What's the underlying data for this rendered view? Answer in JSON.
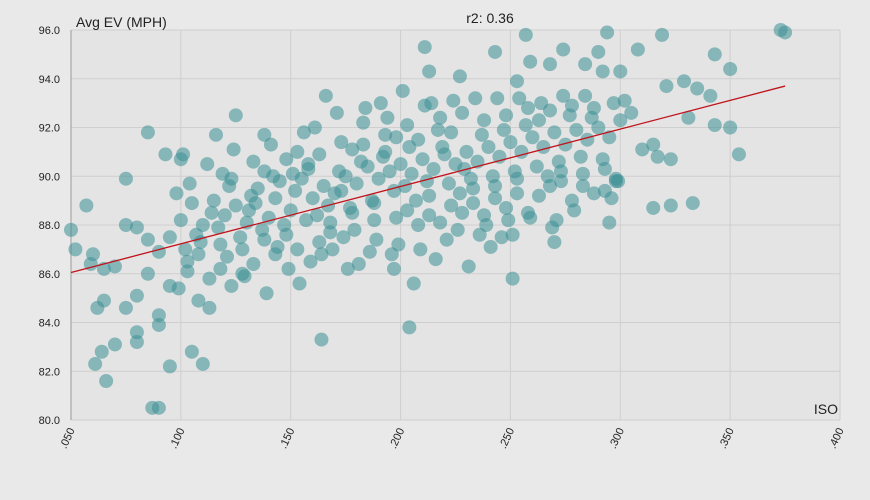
{
  "chart_data": {
    "type": "scatter",
    "title": "r2: 0.36",
    "y_label": "Avg EV (MPH)",
    "x_label": "ISO",
    "color": "#3a8f96",
    "grid": true,
    "xlim": [
      0.05,
      0.4
    ],
    "ylim": [
      80,
      96
    ],
    "xticks": [
      {
        "value": 0.05,
        "label": ".050"
      },
      {
        "value": 0.1,
        "label": ".100"
      },
      {
        "value": 0.15,
        "label": ".150"
      },
      {
        "value": 0.2,
        "label": ".200"
      },
      {
        "value": 0.25,
        "label": ".250"
      },
      {
        "value": 0.3,
        "label": ".300"
      },
      {
        "value": 0.35,
        "label": ".350"
      },
      {
        "value": 0.4,
        "label": ".400"
      }
    ],
    "yticks": [
      {
        "value": 80,
        "label": "80.0"
      },
      {
        "value": 82,
        "label": "82.0"
      },
      {
        "value": 84,
        "label": "84.0"
      },
      {
        "value": 86,
        "label": "86.0"
      },
      {
        "value": 88,
        "label": "88.0"
      },
      {
        "value": 90,
        "label": "90.0"
      },
      {
        "value": 92,
        "label": "92.0"
      },
      {
        "value": 94,
        "label": "94.0"
      },
      {
        "value": 96,
        "label": "96.0"
      }
    ],
    "trendline": {
      "x": [
        0.05,
        0.375
      ],
      "values": [
        86.05,
        93.7
      ],
      "color": "#c0141c"
    },
    "x": [
      0.05,
      0.052,
      0.057,
      0.059,
      0.062,
      0.061,
      0.064,
      0.066,
      0.07,
      0.075,
      0.085,
      0.087,
      0.09,
      0.08,
      0.08,
      0.095,
      0.11,
      0.105,
      0.204,
      0.164,
      0.251,
      0.211,
      0.243,
      0.257,
      0.294,
      0.308,
      0.319,
      0.373,
      0.375,
      0.343,
      0.35,
      0.354,
      0.343,
      0.35,
      0.333,
      0.323,
      0.315,
      0.295,
      0.323,
      0.331,
      0.341,
      0.335,
      0.329,
      0.321,
      0.3,
      0.292,
      0.29,
      0.284,
      0.274,
      0.268,
      0.259,
      0.253,
      0.227,
      0.213,
      0.27,
      0.271,
      0.296,
      0.299,
      0.125,
      0.138,
      0.116,
      0.1,
      0.093,
      0.06,
      0.065,
      0.07,
      0.075,
      0.08,
      0.085,
      0.09,
      0.095,
      0.065,
      0.075,
      0.08,
      0.085,
      0.09,
      0.095,
      0.09,
      0.1,
      0.102,
      0.098,
      0.103,
      0.099,
      0.101,
      0.105,
      0.107,
      0.103,
      0.108,
      0.104,
      0.11,
      0.112,
      0.108,
      0.113,
      0.109,
      0.115,
      0.117,
      0.113,
      0.118,
      0.114,
      0.12,
      0.122,
      0.118,
      0.123,
      0.119,
      0.121,
      0.125,
      0.127,
      0.123,
      0.128,
      0.124,
      0.13,
      0.132,
      0.128,
      0.133,
      0.129,
      0.131,
      0.135,
      0.137,
      0.133,
      0.138,
      0.134,
      0.14,
      0.142,
      0.138,
      0.143,
      0.139,
      0.141,
      0.145,
      0.147,
      0.143,
      0.148,
      0.144,
      0.15,
      0.152,
      0.148,
      0.153,
      0.149,
      0.151,
      0.155,
      0.157,
      0.153,
      0.158,
      0.154,
      0.156,
      0.16,
      0.162,
      0.158,
      0.163,
      0.159,
      0.161,
      0.165,
      0.167,
      0.163,
      0.168,
      0.164,
      0.166,
      0.17,
      0.172,
      0.168,
      0.173,
      0.169,
      0.171,
      0.175,
      0.177,
      0.173,
      0.178,
      0.174,
      0.176,
      0.18,
      0.182,
      0.178,
      0.183,
      0.179,
      0.181,
      0.185,
      0.187,
      0.183,
      0.188,
      0.184,
      0.186,
      0.19,
      0.192,
      0.188,
      0.193,
      0.189,
      0.191,
      0.195,
      0.197,
      0.193,
      0.198,
      0.194,
      0.196,
      0.2,
      0.202,
      0.198,
      0.203,
      0.199,
      0.201,
      0.197,
      0.205,
      0.207,
      0.203,
      0.208,
      0.204,
      0.206,
      0.21,
      0.212,
      0.208,
      0.213,
      0.209,
      0.211,
      0.215,
      0.217,
      0.213,
      0.218,
      0.214,
      0.216,
      0.22,
      0.222,
      0.218,
      0.223,
      0.219,
      0.221,
      0.225,
      0.227,
      0.223,
      0.228,
      0.224,
      0.226,
      0.23,
      0.232,
      0.228,
      0.233,
      0.229,
      0.231,
      0.235,
      0.237,
      0.233,
      0.238,
      0.234,
      0.236,
      0.24,
      0.242,
      0.238,
      0.243,
      0.239,
      0.241,
      0.245,
      0.247,
      0.243,
      0.248,
      0.244,
      0.246,
      0.25,
      0.252,
      0.248,
      0.253,
      0.249,
      0.251,
      0.255,
      0.257,
      0.253,
      0.258,
      0.254,
      0.26,
      0.262,
      0.258,
      0.263,
      0.259,
      0.265,
      0.267,
      0.263,
      0.268,
      0.264,
      0.27,
      0.272,
      0.268,
      0.273,
      0.269,
      0.275,
      0.277,
      0.273,
      0.278,
      0.274,
      0.28,
      0.282,
      0.278,
      0.283,
      0.279,
      0.285,
      0.287,
      0.283,
      0.288,
      0.284,
      0.29,
      0.292,
      0.288,
      0.293,
      0.295,
      0.297,
      0.293,
      0.298,
      0.3,
      0.302,
      0.298,
      0.305,
      0.31,
      0.315,
      0.317
    ],
    "values": [
      87.8,
      87.0,
      88.8,
      86.4,
      84.6,
      82.3,
      82.8,
      81.6,
      83.1,
      89.9,
      91.8,
      80.5,
      80.5,
      83.6,
      83.2,
      82.2,
      82.3,
      82.8,
      83.8,
      83.3,
      85.8,
      95.3,
      95.1,
      95.8,
      95.9,
      95.2,
      95.8,
      96.0,
      95.9,
      95.0,
      94.4,
      90.9,
      92.1,
      92.0,
      88.9,
      88.8,
      88.7,
      88.1,
      90.7,
      92.4,
      93.3,
      93.6,
      93.9,
      93.7,
      94.3,
      94.3,
      95.1,
      94.6,
      95.2,
      94.6,
      94.7,
      93.9,
      94.1,
      94.3,
      87.3,
      88.2,
      89.1,
      89.8,
      92.5,
      91.7,
      91.7,
      90.7,
      90.9,
      86.8,
      84.9,
      86.3,
      84.6,
      87.9,
      86.0,
      84.3,
      85.5,
      86.2,
      88.0,
      85.1,
      87.4,
      86.9,
      87.5,
      83.9,
      88.2,
      87.0,
      89.3,
      86.1,
      85.4,
      90.9,
      88.9,
      87.6,
      86.5,
      84.9,
      89.7,
      88.0,
      90.5,
      86.8,
      85.8,
      87.3,
      89.0,
      87.9,
      84.6,
      86.2,
      88.5,
      88.4,
      89.6,
      87.2,
      85.5,
      90.1,
      86.7,
      88.8,
      87.5,
      89.9,
      86.0,
      91.1,
      88.1,
      89.2,
      87.0,
      90.6,
      85.9,
      88.6,
      89.5,
      87.8,
      86.4,
      90.2,
      88.9,
      88.3,
      90.0,
      87.4,
      89.1,
      85.2,
      91.3,
      89.8,
      88.0,
      86.8,
      90.7,
      87.1,
      88.6,
      89.4,
      87.6,
      91.0,
      86.2,
      90.1,
      89.9,
      88.2,
      87.0,
      90.5,
      85.6,
      91.8,
      89.1,
      88.4,
      90.3,
      87.3,
      86.5,
      92.0,
      89.6,
      88.8,
      90.9,
      87.7,
      86.8,
      93.3,
      89.3,
      90.2,
      88.1,
      91.4,
      87.0,
      92.6,
      90.0,
      88.7,
      89.4,
      91.1,
      87.5,
      86.2,
      89.7,
      90.6,
      88.5,
      92.2,
      87.8,
      86.4,
      90.4,
      89.0,
      91.3,
      88.2,
      92.8,
      86.9,
      89.9,
      90.8,
      88.9,
      91.7,
      87.4,
      93.0,
      90.2,
      89.4,
      91.0,
      88.3,
      92.4,
      86.8,
      90.5,
      89.6,
      91.6,
      88.6,
      87.2,
      93.5,
      86.2,
      90.1,
      89.0,
      92.1,
      88.0,
      91.2,
      85.6,
      90.7,
      89.8,
      91.5,
      88.4,
      87.0,
      92.9,
      90.3,
      91.9,
      89.2,
      88.1,
      93.0,
      86.6,
      90.9,
      89.7,
      92.4,
      88.8,
      91.2,
      87.4,
      90.5,
      89.3,
      91.8,
      88.5,
      93.1,
      87.8,
      91.0,
      89.9,
      92.6,
      88.9,
      90.3,
      86.3,
      90.6,
      91.7,
      89.5,
      88.4,
      93.2,
      87.6,
      91.2,
      90.0,
      92.3,
      89.1,
      88.0,
      87.1,
      90.8,
      91.9,
      89.6,
      88.7,
      93.2,
      87.5,
      91.4,
      90.2,
      92.5,
      89.3,
      88.2,
      87.6,
      91.0,
      92.1,
      89.9,
      88.5,
      93.2,
      91.6,
      90.4,
      92.8,
      89.2,
      88.3,
      91.2,
      90.0,
      92.3,
      89.6,
      93.0,
      91.8,
      90.6,
      92.7,
      89.8,
      87.9,
      91.3,
      92.5,
      90.2,
      89.0,
      93.3,
      91.9,
      90.8,
      92.9,
      89.6,
      88.6,
      91.5,
      92.4,
      90.1,
      89.3,
      93.3,
      92.0,
      90.7,
      92.8,
      89.4,
      91.6,
      93.0,
      90.3,
      89.9,
      92.3,
      93.1,
      89.8,
      92.6,
      91.1,
      91.3,
      90.8
    ]
  }
}
